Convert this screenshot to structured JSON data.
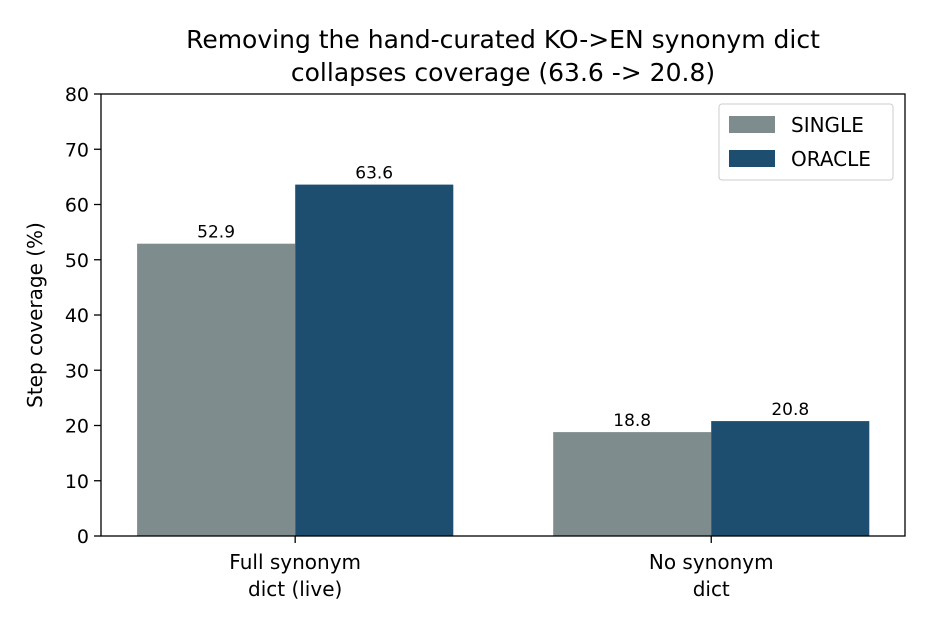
{
  "chart_data": {
    "type": "bar",
    "title": [
      "Removing the hand-curated KO->EN synonym dict",
      "collapses coverage (63.6 -> 20.8)"
    ],
    "ylabel": "Step coverage (%)",
    "xlabel": "",
    "ylim": [
      0,
      80
    ],
    "yticks": [
      0,
      10,
      20,
      30,
      40,
      50,
      60,
      70,
      80
    ],
    "categories": [
      [
        "Full synonym",
        "dict (live)"
      ],
      [
        "No synonym",
        "dict"
      ]
    ],
    "series": [
      {
        "name": "SINGLE",
        "color": "#7f8c8d",
        "values": [
          52.9,
          18.8
        ],
        "labels": [
          "52.9",
          "18.8"
        ]
      },
      {
        "name": "ORACLE",
        "color": "#1d4e6f",
        "values": [
          63.6,
          20.8
        ],
        "labels": [
          "63.6",
          "20.8"
        ]
      }
    ],
    "legend_position": "top-right",
    "grid": false
  }
}
